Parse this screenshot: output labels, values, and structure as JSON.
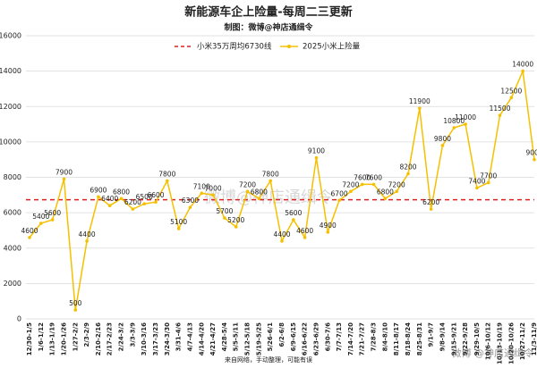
{
  "chart_data": {
    "type": "line",
    "title": "新能源车企上险量-每周二三更新",
    "subtitle": "制图：微博@神店通缉令",
    "footer": "来自网络，手动整理，可能有误",
    "watermark": "微博@神店通缉令",
    "corner_watermark": "微博 @神店通缉令",
    "categories": [
      "12/30-1/5",
      "1/6-1/12",
      "1/13-1/19",
      "1/20-1/26",
      "1/27-2/2",
      "2/3-2/9",
      "2/10-2/16",
      "2/17-2/23",
      "2/24-3/2",
      "3/3-3/9",
      "3/10-3/16",
      "3/17-3/23",
      "3/24-3/30",
      "3/31-4/6",
      "4/7-4/13",
      "4/14-4/20",
      "4/21-4/27",
      "4/28-5/4",
      "5/5-5/11",
      "5/12-5/18",
      "5/19-5/25",
      "5/26-6/1",
      "6/2-6/8",
      "6/9-6/15",
      "6/16-6/22",
      "6/23-6/29",
      "6/30-7/6",
      "7/7-7/13",
      "7/14-7/20",
      "7/21-7/27",
      "7/28-8/3",
      "8/4-8/10",
      "8/11-8/17",
      "8/18-8/24",
      "8/25-8/31",
      "9/1-9/7",
      "9/8-9/14",
      "9/15-9/21",
      "9/22-9/28",
      "9/29-10/5",
      "10/6-10/12",
      "10/13-10/19",
      "10/20-10/26",
      "10/27-11/2",
      "11/3-11/9"
    ],
    "series": [
      {
        "name": "2025小米上险量",
        "color": "#f5c000",
        "values": [
          4600,
          5400,
          5600,
          7900,
          500,
          4400,
          6900,
          6400,
          6800,
          6200,
          6500,
          6600,
          7800,
          5100,
          6300,
          7100,
          7000,
          5700,
          5200,
          7200,
          6800,
          7800,
          4400,
          5600,
          4600,
          9100,
          4900,
          6700,
          7200,
          7600,
          7600,
          6800,
          7200,
          8200,
          11900,
          6200,
          9800,
          10800,
          11000,
          7400,
          7700,
          11500,
          12500,
          14000,
          9000
        ]
      }
    ],
    "reference_line": {
      "name": "小米35万周均6730线",
      "value": 6730,
      "color": "#e02020"
    },
    "ylim": [
      0,
      16000
    ],
    "yticks": [
      0,
      2000,
      4000,
      6000,
      8000,
      10000,
      12000,
      14000,
      16000
    ],
    "grid": true,
    "legend": "top"
  }
}
